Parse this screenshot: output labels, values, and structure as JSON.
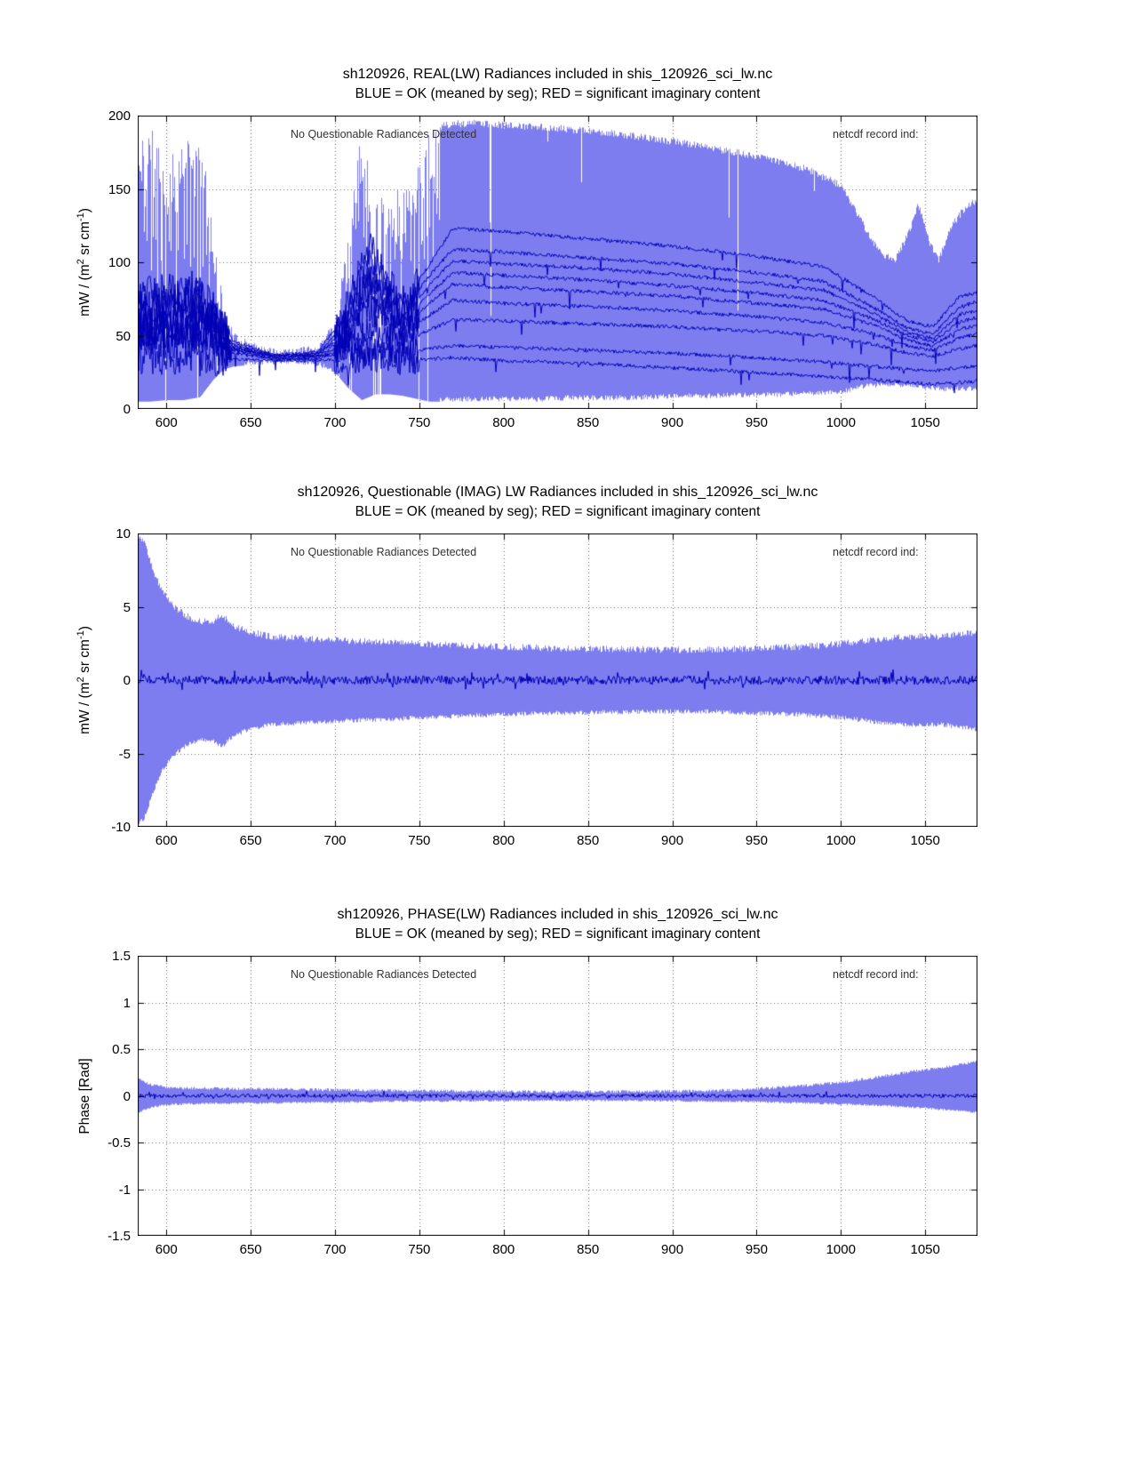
{
  "chart_data": [
    {
      "type": "area",
      "title": "sh120926, REAL(LW) Radiances included in shis_120926_sci_lw.nc",
      "subtitle": "BLUE = OK (meaned by seg); RED = significant imaginary content",
      "annotations": {
        "left": "No Questionable Radiances Detected",
        "right": "netcdf record ind:"
      },
      "ylabel": {
        "pre": "mW / (m",
        "sup1": "2",
        "mid": " sr cm",
        "sup2": "-1",
        "post": ")"
      },
      "xlabel": "",
      "xlim": [
        583,
        1081
      ],
      "ylim": [
        0,
        200
      ],
      "xticks": [
        600,
        650,
        700,
        750,
        800,
        850,
        900,
        950,
        1000,
        1050
      ],
      "xtick_labels": [
        "600",
        "650",
        "700",
        "750",
        "800",
        "850",
        "900",
        "950",
        "1000",
        "1050"
      ],
      "yticks": [
        0,
        50,
        100,
        150,
        200
      ],
      "ytick_labels": [
        "0",
        "50",
        "100",
        "150",
        "200"
      ],
      "grid": true,
      "colors": {
        "fill": "#7d7df0",
        "line": "#0000b4",
        "grid": "#666666"
      },
      "envelope": {
        "x": [
          583,
          590,
          600,
          610,
          620,
          628,
          634,
          640,
          650,
          660,
          675,
          690,
          700,
          708,
          716,
          724,
          732,
          740,
          748,
          756,
          764,
          772,
          785,
          800,
          820,
          840,
          860,
          880,
          900,
          920,
          940,
          960,
          980,
          1000,
          1008,
          1016,
          1024,
          1032,
          1040,
          1046,
          1052,
          1058,
          1066,
          1074,
          1081
        ],
        "upper": [
          190,
          193,
          180,
          183,
          186,
          130,
          70,
          52,
          46,
          42,
          41,
          44,
          60,
          120,
          196,
          150,
          148,
          152,
          170,
          190,
          196,
          197,
          197,
          196,
          195,
          193,
          191,
          188,
          185,
          181,
          177,
          172,
          166,
          155,
          140,
          122,
          108,
          104,
          122,
          142,
          118,
          104,
          128,
          140,
          145
        ],
        "lower": [
          5,
          5,
          6,
          6,
          8,
          20,
          27,
          29,
          30,
          30,
          31,
          29,
          25,
          14,
          6,
          10,
          10,
          9,
          7,
          5,
          5,
          5,
          5,
          5,
          5,
          6,
          6,
          6,
          7,
          7,
          8,
          8,
          9,
          10,
          12,
          14,
          15,
          15,
          14,
          14,
          13,
          12,
          12,
          12,
          12
        ]
      },
      "segment_mean_x": [
        585,
        620,
        640,
        665,
        690,
        705,
        720,
        740,
        755,
        770,
        800,
        850,
        900,
        950,
        990,
        1020,
        1040,
        1055,
        1070,
        1080
      ],
      "segment_means": [
        [
          78,
          82,
          46,
          37,
          39,
          62,
          112,
          72,
          96,
          123,
          121,
          116,
          111,
          104,
          97,
          76,
          60,
          56,
          76,
          79
        ],
        [
          72,
          76,
          44,
          36,
          38,
          56,
          101,
          66,
          89,
          109,
          107,
          103,
          99,
          93,
          87,
          69,
          55,
          51,
          69,
          73
        ],
        [
          68,
          72,
          43,
          36,
          37,
          53,
          93,
          62,
          83,
          101,
          99,
          96,
          92,
          86,
          81,
          65,
          52,
          48,
          64,
          67
        ],
        [
          63,
          67,
          42,
          35,
          37,
          50,
          86,
          59,
          77,
          93,
          91,
          88,
          84,
          79,
          74,
          61,
          50,
          46,
          59,
          62
        ],
        [
          58,
          61,
          41,
          35,
          36,
          47,
          79,
          55,
          71,
          85,
          83,
          80,
          77,
          72,
          68,
          57,
          47,
          43,
          54,
          57
        ],
        [
          53,
          56,
          40,
          34,
          35,
          44,
          69,
          51,
          63,
          74,
          72,
          70,
          67,
          63,
          59,
          51,
          43,
          40,
          48,
          51
        ],
        [
          46,
          48,
          38,
          34,
          34,
          41,
          56,
          45,
          53,
          61,
          60,
          58,
          56,
          53,
          50,
          44,
          38,
          36,
          41,
          43
        ],
        [
          56,
          51,
          41,
          37,
          36,
          37,
          39,
          39,
          41,
          43,
          42,
          40,
          38,
          35,
          32,
          29,
          27,
          26,
          28,
          29
        ],
        [
          36,
          35,
          34,
          33,
          33,
          34,
          35,
          34,
          34,
          35,
          33,
          31,
          28,
          25,
          22,
          20,
          18,
          17,
          18,
          19
        ]
      ],
      "line_noise_regions": [
        [
          583,
          638,
          13
        ],
        [
          638,
          700,
          1.0
        ],
        [
          700,
          750,
          11
        ]
      ],
      "line_noise_default": 1.3,
      "texture": {
        "tall": [
          [
            583,
            646
          ],
          [
            698,
            762
          ]
        ],
        "needles": [
          [
            756,
            1005
          ]
        ],
        "needle_prob": 0.013,
        "gap_prob": 0.05,
        "edge_jitter": 5
      }
    },
    {
      "type": "area",
      "title": "sh120926, Questionable (IMAG) LW Radiances included in shis_120926_sci_lw.nc",
      "subtitle": "BLUE = OK (meaned by seg); RED = significant imaginary content",
      "annotations": {
        "left": "No Questionable Radiances Detected",
        "right": "netcdf record ind:"
      },
      "ylabel": {
        "pre": "mW / (m",
        "sup1": "2",
        "mid": " sr cm",
        "sup2": "-1",
        "post": ")"
      },
      "xlabel": "",
      "xlim": [
        583,
        1081
      ],
      "ylim": [
        -10,
        10
      ],
      "xticks": [
        600,
        650,
        700,
        750,
        800,
        850,
        900,
        950,
        1000,
        1050
      ],
      "xtick_labels": [
        "600",
        "650",
        "700",
        "750",
        "800",
        "850",
        "900",
        "950",
        "1000",
        "1050"
      ],
      "yticks": [
        -10,
        -5,
        0,
        5,
        10
      ],
      "ytick_labels": [
        "-10",
        "-5",
        "0",
        "5",
        "10"
      ],
      "grid": true,
      "colors": {
        "fill": "#7d7df0",
        "line": "#0000b4",
        "grid": "#666666"
      },
      "envelope": {
        "x": [
          583,
          587,
          592,
          598,
          605,
          612,
          620,
          628,
          633,
          640,
          650,
          662,
          675,
          690,
          710,
          730,
          750,
          775,
          800,
          830,
          860,
          890,
          920,
          950,
          975,
          1000,
          1020,
          1040,
          1060,
          1081
        ],
        "upper": [
          10,
          9.6,
          7.8,
          6.2,
          5.2,
          4.6,
          4.2,
          4.3,
          4.7,
          3.9,
          3.5,
          3.2,
          3.1,
          3.0,
          2.9,
          2.85,
          2.7,
          2.6,
          2.5,
          2.4,
          2.35,
          2.3,
          2.3,
          2.4,
          2.5,
          2.7,
          3.0,
          3.2,
          3.2,
          3.5
        ],
        "lower": [
          -10,
          -9.6,
          -7.8,
          -6.2,
          -5.2,
          -4.6,
          -4.2,
          -4.3,
          -4.7,
          -3.9,
          -3.5,
          -3.2,
          -3.1,
          -3.0,
          -2.9,
          -2.85,
          -2.7,
          -2.6,
          -2.5,
          -2.4,
          -2.35,
          -2.3,
          -2.3,
          -2.4,
          -2.5,
          -2.7,
          -3.0,
          -3.2,
          -3.2,
          -3.5
        ]
      },
      "center_noise": 0.3,
      "texture": {
        "edge_jitter": 0.45
      }
    },
    {
      "type": "area",
      "title": "sh120926, PHASE(LW) Radiances included in shis_120926_sci_lw.nc",
      "subtitle": "BLUE = OK (meaned by seg); RED = significant imaginary content",
      "annotations": {
        "left": "No Questionable Radiances Detected",
        "right": "netcdf record ind:"
      },
      "ylabel": {
        "pre": "Phase [Rad]",
        "sup1": "",
        "mid": "",
        "sup2": "",
        "post": ""
      },
      "xlabel": "",
      "xlim": [
        583,
        1081
      ],
      "ylim": [
        -1.5,
        1.5
      ],
      "xticks": [
        600,
        650,
        700,
        750,
        800,
        850,
        900,
        950,
        1000,
        1050
      ],
      "xtick_labels": [
        "600",
        "650",
        "700",
        "750",
        "800",
        "850",
        "900",
        "950",
        "1000",
        "1050"
      ],
      "yticks": [
        -1.5,
        -1,
        -0.5,
        0,
        0.5,
        1,
        1.5
      ],
      "ytick_labels": [
        "-1.5",
        "-1",
        "-0.5",
        "0",
        "0.5",
        "1",
        "1.5"
      ],
      "grid": true,
      "colors": {
        "fill": "#7d7df0",
        "line": "#0000b4",
        "grid": "#666666"
      },
      "envelope": {
        "x": [
          583,
          588,
          595,
          605,
          620,
          640,
          665,
          700,
          740,
          780,
          820,
          860,
          900,
          925,
          950,
          975,
          1000,
          1020,
          1040,
          1055,
          1068,
          1081
        ],
        "upper": [
          0.2,
          0.15,
          0.12,
          0.1,
          0.095,
          0.09,
          0.085,
          0.08,
          0.07,
          0.065,
          0.06,
          0.06,
          0.065,
          0.07,
          0.09,
          0.12,
          0.16,
          0.21,
          0.27,
          0.31,
          0.34,
          0.38
        ],
        "lower": [
          -0.2,
          -0.15,
          -0.12,
          -0.1,
          -0.095,
          -0.09,
          -0.085,
          -0.08,
          -0.07,
          -0.065,
          -0.06,
          -0.06,
          -0.065,
          -0.068,
          -0.075,
          -0.085,
          -0.1,
          -0.11,
          -0.13,
          -0.15,
          -0.17,
          -0.19
        ]
      },
      "center_noise": 0.02,
      "texture": {
        "edge_jitter": 0.03
      }
    }
  ]
}
